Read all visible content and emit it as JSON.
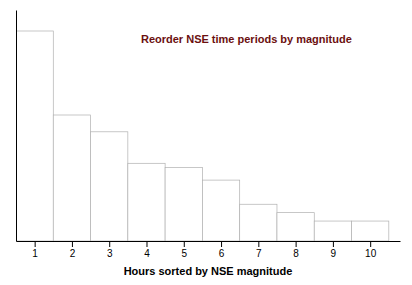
{
  "chart_data": {
    "type": "bar",
    "title": "Reorder NSE time periods by magnitude",
    "xlabel": "Hours sorted by NSE magnitude",
    "x": [
      1,
      2,
      3,
      4,
      5,
      6,
      7,
      8,
      9,
      10
    ],
    "values": [
      1.0,
      0.6,
      0.52,
      0.37,
      0.35,
      0.29,
      0.175,
      0.135,
      0.095,
      0.095
    ],
    "color": "#ffffff",
    "xlim": [
      0.5,
      10.8
    ],
    "xticks": [
      1,
      2,
      3,
      4,
      5,
      6,
      7,
      8,
      9,
      10
    ],
    "ylim": [
      0,
      1.1
    ],
    "yticks": [],
    "tick_labels": "x",
    "grid": false
  }
}
